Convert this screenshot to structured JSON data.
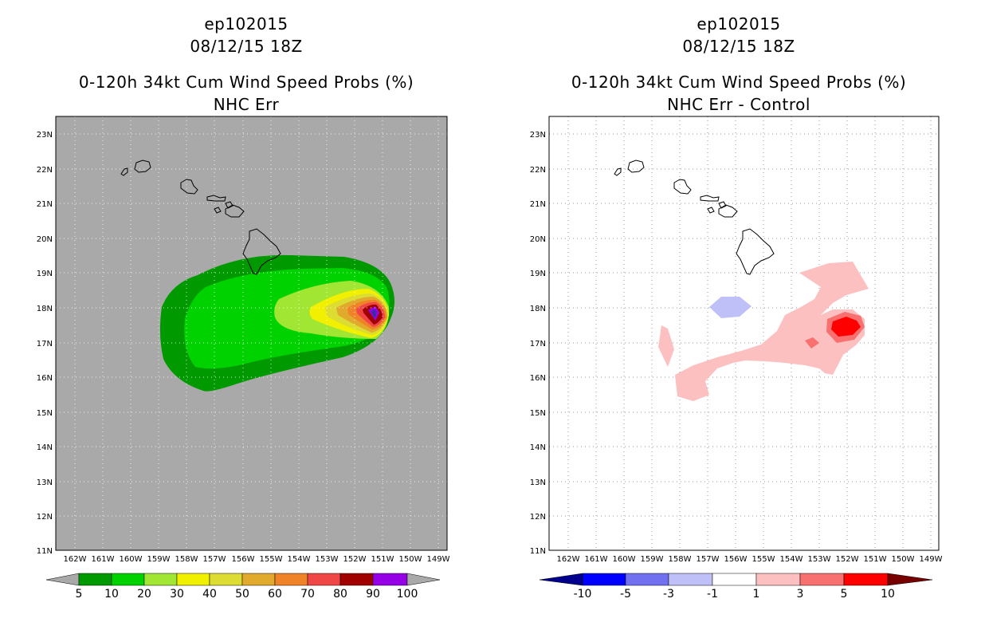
{
  "panels": [
    {
      "storm": "ep102015",
      "datetime": "08/12/15 18Z",
      "title": "0-120h 34kt Cum Wind Speed Probs (%)",
      "subtitle": "NHC Err",
      "background": "#a9a9a9"
    },
    {
      "storm": "ep102015",
      "datetime": "08/12/15 18Z",
      "title": "0-120h 34kt Cum Wind Speed Probs (%)",
      "subtitle": "NHC Err - Control",
      "background": "#ffffff"
    }
  ],
  "axes": {
    "lat_labels": [
      "23N",
      "22N",
      "21N",
      "20N",
      "19N",
      "18N",
      "17N",
      "16N",
      "15N",
      "14N",
      "13N",
      "12N",
      "11N"
    ],
    "lon_labels": [
      "162W",
      "161W",
      "160W",
      "159W",
      "158W",
      "157W",
      "156W",
      "155W",
      "154W",
      "153W",
      "152W",
      "151W",
      "150W",
      "149W"
    ]
  },
  "colorbars": {
    "probability": {
      "labels": [
        "5",
        "10",
        "20",
        "30",
        "40",
        "50",
        "60",
        "70",
        "80",
        "90",
        "100"
      ],
      "colors": [
        "#009a00",
        "#00d200",
        "#a0e632",
        "#f0f000",
        "#dcdc32",
        "#e1aa2d",
        "#f08228",
        "#f04646",
        "#a00000",
        "#9600e6"
      ]
    },
    "difference": {
      "labels": [
        "-10",
        "-5",
        "-3",
        "-1",
        "1",
        "3",
        "5",
        "10"
      ],
      "colors": [
        "#0000ff",
        "#7070f0",
        "#c0c0f8",
        "#ffffff",
        "#fcc0c0",
        "#f87070",
        "#ff0000"
      ],
      "low_end": "#00008c",
      "high_end": "#780000"
    }
  }
}
